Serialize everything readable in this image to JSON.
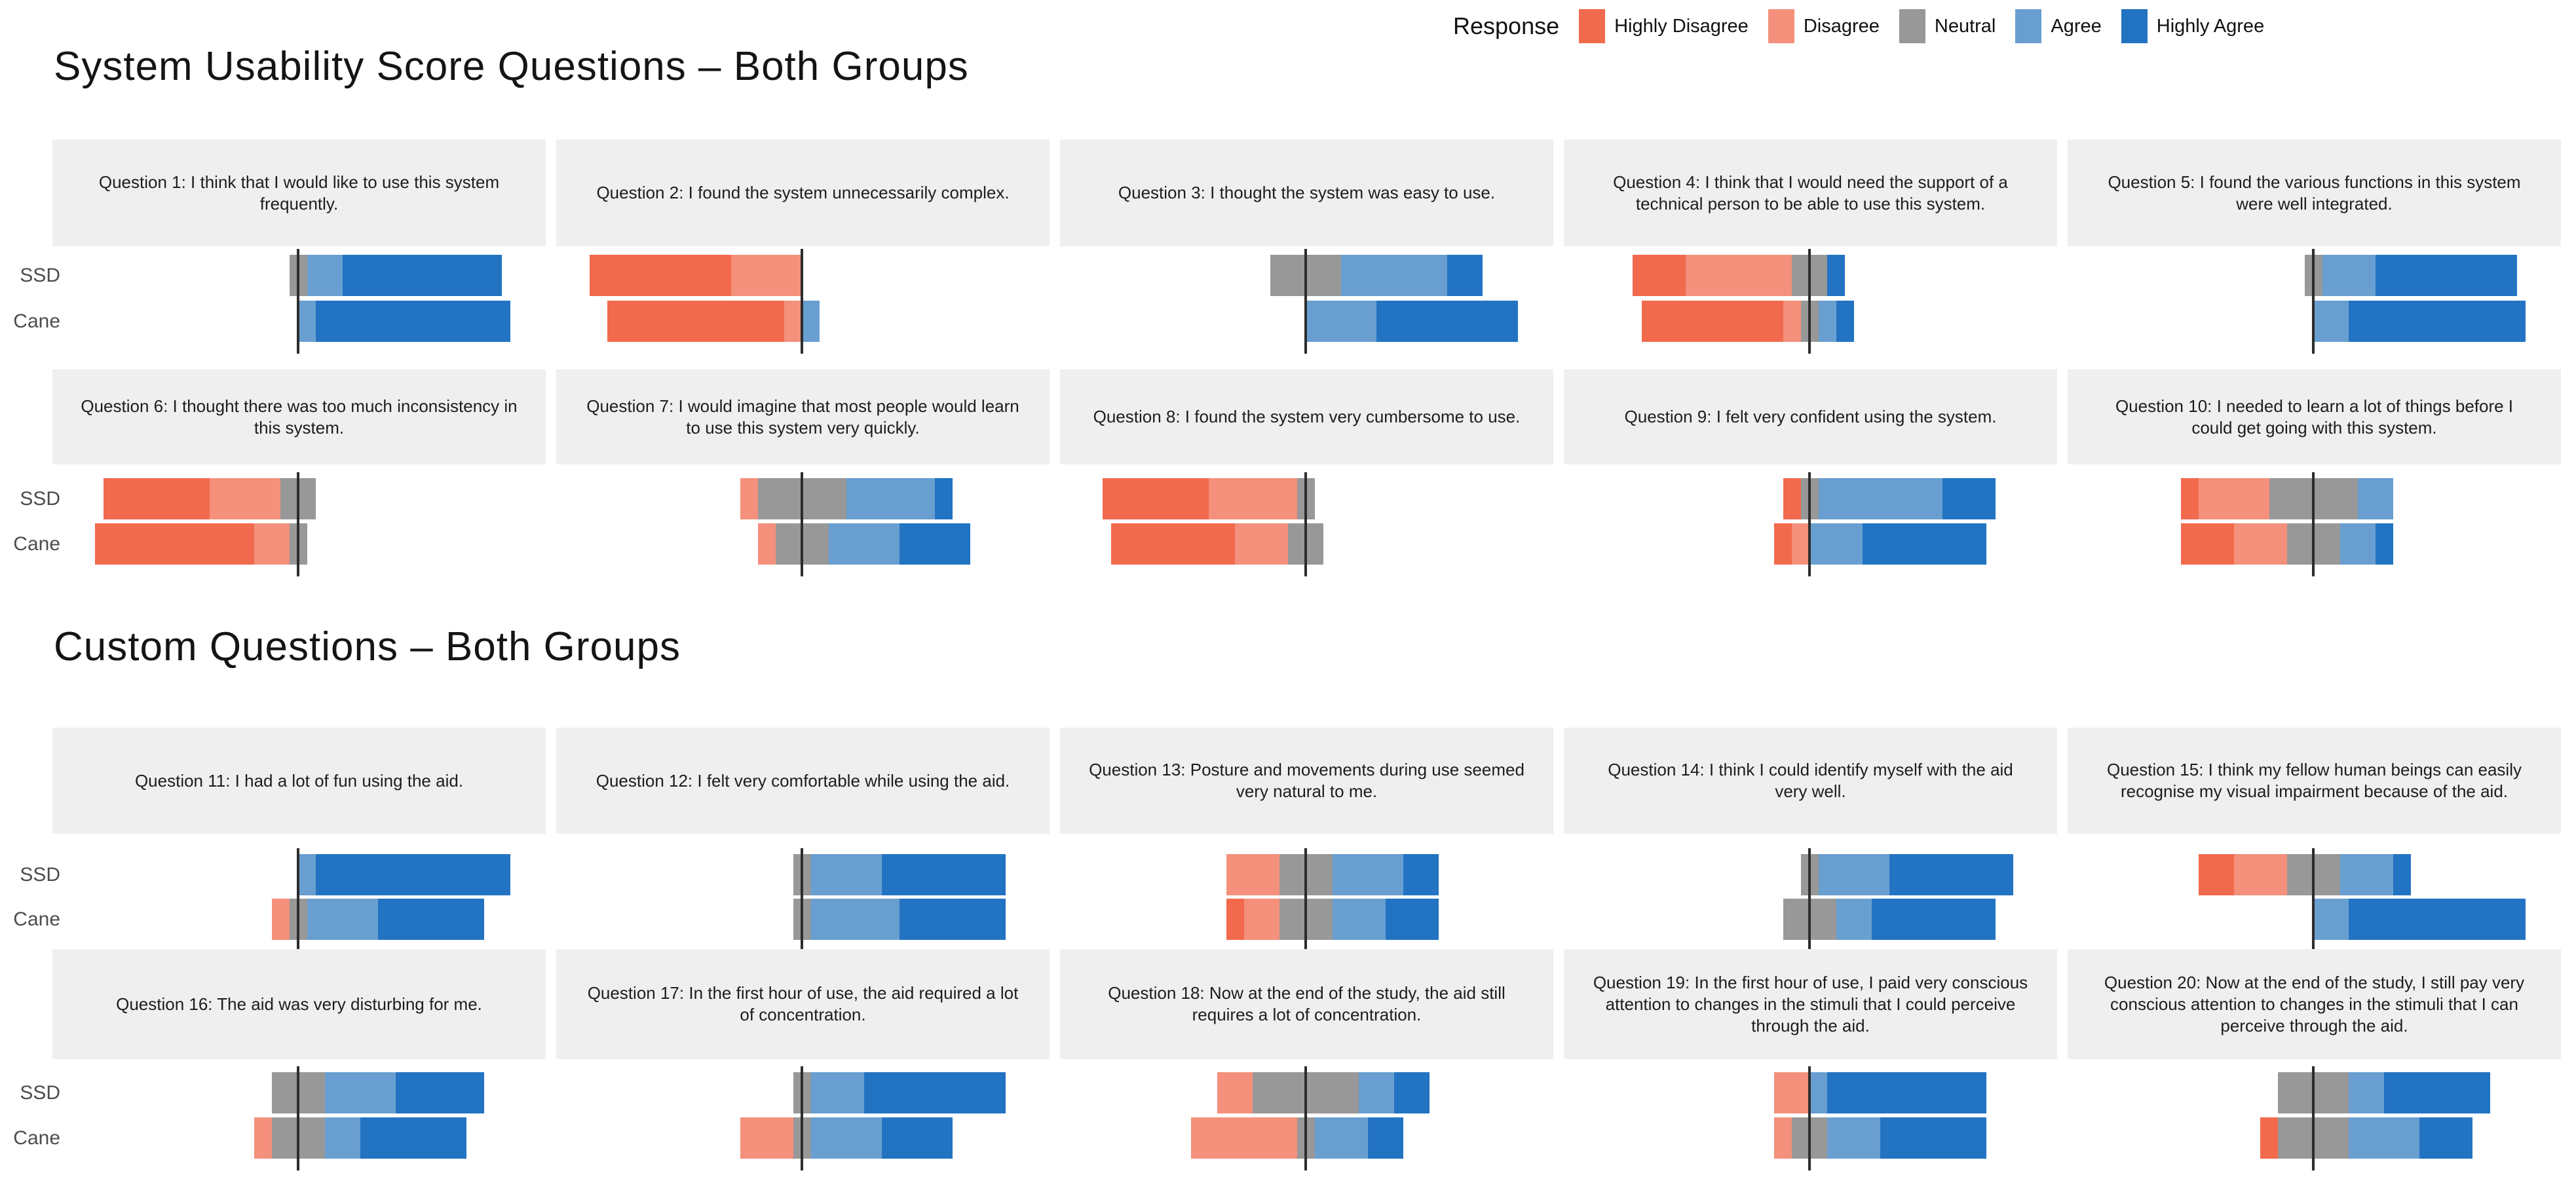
{
  "legend": {
    "title": "Response"
  },
  "chart_data": {
    "type": "bar",
    "subtype": "diverging_stacked_likert",
    "orientation": "horizontal",
    "units": "count of responses (12 participants per group)",
    "group_size": 12,
    "response_levels": [
      "Highly Disagree",
      "Disagree",
      "Neutral",
      "Agree",
      "Highly Agree"
    ],
    "colors": {
      "Highly Disagree": "#f26a4d",
      "Disagree": "#f4907c",
      "Neutral": "#989899",
      "Agree": "#699fd0",
      "Highly Agree": "#2373c3"
    },
    "axis_note": "bars diverge around a zero line; Neutral segment is centered on zero",
    "groups": [
      "SSD",
      "Cane"
    ],
    "sections": [
      {
        "title": "System Usability Score Questions –  Both Groups",
        "questions": [
          {
            "label": "Question 1: I think that I would like to use this system frequently.",
            "SSD": [
              0,
              0,
              1,
              2,
              9
            ],
            "Cane": [
              0,
              0,
              0,
              1,
              11
            ]
          },
          {
            "label": "Question 2: I found the system unnecessarily complex.",
            "SSD": [
              8,
              4,
              0,
              0,
              0
            ],
            "Cane": [
              10,
              1,
              0,
              1,
              0
            ]
          },
          {
            "label": "Question 3: I thought the system was easy to use.",
            "SSD": [
              0,
              0,
              4,
              6,
              2
            ],
            "Cane": [
              0,
              0,
              0,
              4,
              8
            ]
          },
          {
            "label": "Question 4: I think that I would need the support of a technical person to be able to use this system.",
            "SSD": [
              3,
              6,
              2,
              0,
              1
            ],
            "Cane": [
              8,
              1,
              1,
              1,
              1
            ]
          },
          {
            "label": "Question 5: I found the various functions in this system were well integrated.",
            "SSD": [
              0,
              0,
              1,
              3,
              8
            ],
            "Cane": [
              0,
              0,
              0,
              2,
              10
            ]
          },
          {
            "label": "Question 6: I thought there was too much inconsistency in this system.",
            "SSD": [
              6,
              4,
              2,
              0,
              0
            ],
            "Cane": [
              9,
              2,
              1,
              0,
              0
            ]
          },
          {
            "label": "Question 7: I would imagine that most people would learn to use this system very quickly.",
            "SSD": [
              0,
              1,
              5,
              5,
              1
            ],
            "Cane": [
              0,
              1,
              3,
              4,
              4
            ]
          },
          {
            "label": "Question 8: I found the system very cumbersome to use.",
            "SSD": [
              6,
              5,
              1,
              0,
              0
            ],
            "Cane": [
              7,
              3,
              2,
              0,
              0
            ]
          },
          {
            "label": "Question 9: I felt very confident using the system.",
            "SSD": [
              1,
              0,
              1,
              7,
              3
            ],
            "Cane": [
              1,
              1,
              0,
              3,
              7
            ]
          },
          {
            "label": "Question 10: I needed to learn a lot of things before I could get going with this system.",
            "SSD": [
              1,
              4,
              5,
              2,
              0
            ],
            "Cane": [
              3,
              3,
              3,
              2,
              1
            ]
          }
        ]
      },
      {
        "title": "Custom Questions – Both Groups",
        "questions": [
          {
            "label": "Question 11: I had a lot of fun using the aid.",
            "SSD": [
              0,
              0,
              0,
              1,
              11
            ],
            "Cane": [
              0,
              1,
              1,
              4,
              6
            ]
          },
          {
            "label": "Question 12: I felt very comfortable while using the aid.",
            "SSD": [
              0,
              0,
              1,
              4,
              7
            ],
            "Cane": [
              0,
              0,
              1,
              5,
              6
            ]
          },
          {
            "label": "Question 13: Posture and movements during use seemed very natural to me.",
            "SSD": [
              0,
              3,
              3,
              4,
              2
            ],
            "Cane": [
              1,
              2,
              3,
              3,
              3
            ]
          },
          {
            "label": "Question 14: I think I could identify myself with the aid very well.",
            "SSD": [
              0,
              0,
              1,
              4,
              7
            ],
            "Cane": [
              0,
              0,
              3,
              2,
              7
            ]
          },
          {
            "label": "Question 15: I think my fellow human beings can easily recognise my visual impairment because of the aid.",
            "SSD": [
              2,
              3,
              3,
              3,
              1
            ],
            "Cane": [
              0,
              0,
              0,
              2,
              10
            ]
          },
          {
            "label": "Question 16: The aid was very disturbing for me.",
            "SSD": [
              0,
              0,
              3,
              4,
              5
            ],
            "Cane": [
              0,
              1,
              3,
              2,
              6
            ]
          },
          {
            "label": "Question 17: In the first hour of use, the aid required a lot of concentration.",
            "SSD": [
              0,
              0,
              1,
              3,
              8
            ],
            "Cane": [
              0,
              3,
              1,
              4,
              4
            ]
          },
          {
            "label": "Question 18: Now at the end of the study, the aid still requires a lot of concentration.",
            "SSD": [
              0,
              2,
              6,
              2,
              2
            ],
            "Cane": [
              0,
              6,
              1,
              3,
              2
            ]
          },
          {
            "label": "Question 19: In the first hour of use, I paid very conscious attention to changes in the stimuli that I could perceive through the aid.",
            "SSD": [
              0,
              2,
              0,
              1,
              9
            ],
            "Cane": [
              0,
              1,
              2,
              3,
              6
            ]
          },
          {
            "label": "Question 20: Now at the end of the study, I still pay very conscious attention to changes in the stimuli that I can perceive through the aid.",
            "SSD": [
              0,
              0,
              4,
              2,
              6
            ],
            "Cane": [
              1,
              0,
              4,
              4,
              3
            ]
          }
        ]
      }
    ]
  }
}
